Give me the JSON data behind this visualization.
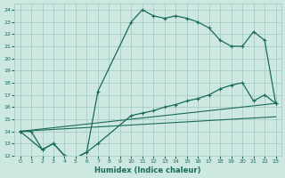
{
  "xlabel": "Humidex (Indice chaleur)",
  "bg_color": "#cce8e0",
  "grid_color": "#aaccc4",
  "line_color": "#1a6b5a",
  "xlim": [
    -0.5,
    23.5
  ],
  "ylim": [
    12,
    24.5
  ],
  "xticks": [
    0,
    1,
    2,
    3,
    4,
    5,
    6,
    7,
    8,
    9,
    10,
    11,
    12,
    13,
    14,
    15,
    16,
    17,
    18,
    19,
    20,
    21,
    22,
    23
  ],
  "yticks": [
    12,
    13,
    14,
    15,
    16,
    17,
    18,
    19,
    20,
    21,
    22,
    23,
    24
  ],
  "series": [
    {
      "x": [
        0,
        1,
        2,
        3,
        4,
        5,
        6,
        7,
        10,
        11,
        12,
        13,
        14,
        15,
        16,
        17,
        18,
        19,
        20,
        21,
        22,
        23
      ],
      "y": [
        14,
        14,
        12.5,
        13,
        12,
        11.8,
        12.3,
        17.3,
        23,
        24,
        23.5,
        23.3,
        23.5,
        23.3,
        23.0,
        22.5,
        21.5,
        21.0,
        21.0,
        22.2,
        21.5,
        16.3
      ],
      "marker": "+",
      "lw": 0.9
    },
    {
      "x": [
        0,
        2,
        3,
        4,
        5,
        6,
        7,
        10,
        11,
        12,
        13,
        14,
        15,
        16,
        17,
        18,
        19,
        20,
        21,
        22,
        23
      ],
      "y": [
        14,
        12.5,
        13.0,
        12.0,
        11.8,
        12.3,
        13.0,
        15.3,
        15.5,
        15.7,
        16.0,
        16.2,
        16.5,
        16.7,
        17.0,
        17.5,
        17.8,
        18.0,
        16.5,
        17.0,
        16.3
      ],
      "marker": "+",
      "lw": 0.9
    },
    {
      "x": [
        0,
        23
      ],
      "y": [
        14,
        16.3
      ],
      "marker": null,
      "lw": 0.8
    },
    {
      "x": [
        0,
        23
      ],
      "y": [
        14,
        15.2
      ],
      "marker": null,
      "lw": 0.8
    }
  ]
}
